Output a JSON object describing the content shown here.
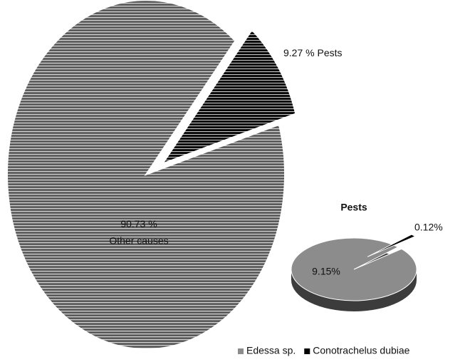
{
  "chart_data": [
    {
      "type": "pie",
      "categories": [
        "Pests",
        "Other causes"
      ],
      "values": [
        9.27,
        90.73
      ],
      "value_labels": [
        "9.27 %",
        "90.73 %"
      ],
      "colors": [
        "#000000",
        "#5a5a5a"
      ]
    },
    {
      "type": "pie",
      "title": "Pests",
      "categories": [
        "Edessa sp.",
        "Conotrachelus dubiae"
      ],
      "values": [
        9.15,
        0.12
      ],
      "value_labels": [
        "9.15%",
        "0.12%"
      ],
      "colors": [
        "#8c8c8c",
        "#000000"
      ],
      "legend": "bottom"
    }
  ]
}
